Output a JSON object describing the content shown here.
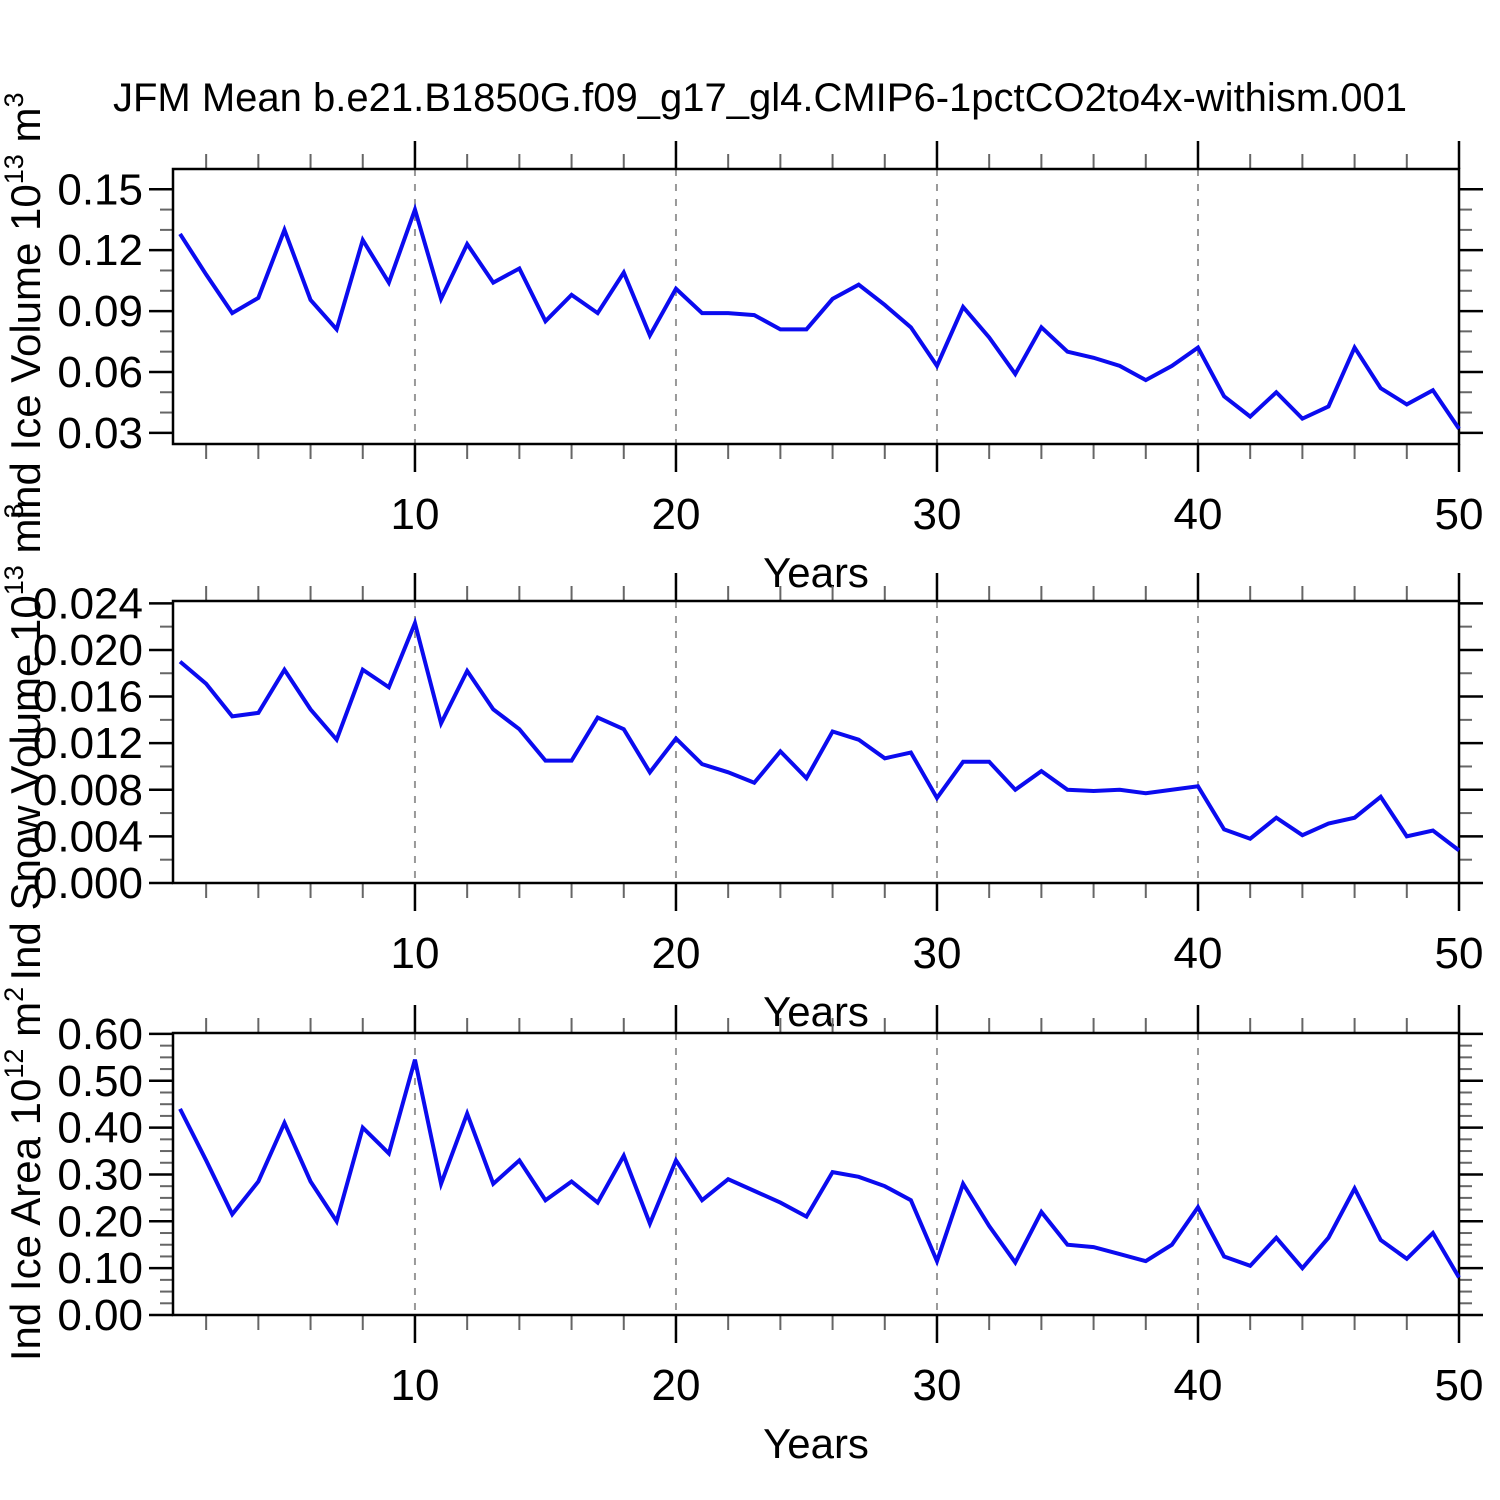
{
  "title": "JFM Mean b.e21.B1850G.f09_g17_gl4.CMIP6-1pctCO2to4x-withism.001",
  "colors": {
    "line": "#0b0bef",
    "grid": "#999999",
    "frame": "#000000",
    "minor_tick": "#666666"
  },
  "chart_data": [
    {
      "type": "line",
      "ylabel": "Ind Ice Volume 10^13 m^3",
      "ylabel_segments": [
        {
          "t": "Ind Ice Volume 10"
        },
        {
          "t": "13",
          "sup": true
        },
        {
          "t": " m"
        },
        {
          "t": "3",
          "sup": true
        }
      ],
      "xlabel": "Years",
      "xlim": [
        0.73,
        50
      ],
      "ylim": [
        0.0245,
        0.16
      ],
      "xticks_major": [
        10,
        20,
        30,
        40,
        50
      ],
      "xticks_minor": [
        2,
        4,
        6,
        8,
        12,
        14,
        16,
        18,
        22,
        24,
        26,
        28,
        32,
        34,
        36,
        38,
        42,
        44,
        46,
        48
      ],
      "gridlines_x": [
        10,
        20,
        30,
        40
      ],
      "yticks_major": [
        0.03,
        0.06,
        0.09,
        0.12,
        0.15
      ],
      "ytick_labels": [
        "0.03",
        "0.06",
        "0.09",
        "0.12",
        "0.15"
      ],
      "yticks_minor": [
        0.04,
        0.05,
        0.07,
        0.08,
        0.1,
        0.11,
        0.13,
        0.14
      ],
      "x": [
        1,
        2,
        3,
        4,
        5,
        6,
        7,
        8,
        9,
        10,
        11,
        12,
        13,
        14,
        15,
        16,
        17,
        18,
        19,
        20,
        21,
        22,
        23,
        24,
        25,
        26,
        27,
        28,
        29,
        30,
        31,
        32,
        33,
        34,
        35,
        36,
        37,
        38,
        39,
        40,
        41,
        42,
        43,
        44,
        45,
        46,
        47,
        48,
        49,
        50
      ],
      "values": [
        0.128,
        0.108,
        0.089,
        0.0965,
        0.13,
        0.0955,
        0.081,
        0.125,
        0.104,
        0.14,
        0.096,
        0.123,
        0.104,
        0.111,
        0.085,
        0.098,
        0.089,
        0.109,
        0.078,
        0.101,
        0.089,
        0.089,
        0.088,
        0.081,
        0.081,
        0.096,
        0.103,
        0.093,
        0.082,
        0.063,
        0.092,
        0.077,
        0.059,
        0.082,
        0.07,
        0.067,
        0.063,
        0.056,
        0.063,
        0.072,
        0.048,
        0.038,
        0.05,
        0.037,
        0.043,
        0.072,
        0.052,
        0.044,
        0.051,
        0.032
      ]
    },
    {
      "type": "line",
      "ylabel": "Ind Snow Volume 10^13 m^3",
      "ylabel_segments": [
        {
          "t": "Ind Snow Volume 10"
        },
        {
          "t": "13",
          "sup": true
        },
        {
          "t": " m"
        },
        {
          "t": "3",
          "sup": true
        }
      ],
      "xlabel": "Years",
      "xlim": [
        0.73,
        50
      ],
      "ylim": [
        0.0,
        0.0242
      ],
      "xticks_major": [
        10,
        20,
        30,
        40,
        50
      ],
      "xticks_minor": [
        2,
        4,
        6,
        8,
        12,
        14,
        16,
        18,
        22,
        24,
        26,
        28,
        32,
        34,
        36,
        38,
        42,
        44,
        46,
        48
      ],
      "gridlines_x": [
        10,
        20,
        30,
        40
      ],
      "yticks_major": [
        0.0,
        0.004,
        0.008,
        0.012,
        0.016,
        0.02,
        0.024
      ],
      "ytick_labels": [
        "0.000",
        "0.004",
        "0.008",
        "0.012",
        "0.016",
        "0.020",
        "0.024"
      ],
      "yticks_minor": [
        0.002,
        0.006,
        0.01,
        0.014,
        0.018,
        0.022
      ],
      "x": [
        1,
        2,
        3,
        4,
        5,
        6,
        7,
        8,
        9,
        10,
        11,
        12,
        13,
        14,
        15,
        16,
        17,
        18,
        19,
        20,
        21,
        22,
        23,
        24,
        25,
        26,
        27,
        28,
        29,
        30,
        31,
        32,
        33,
        34,
        35,
        36,
        37,
        38,
        39,
        40,
        41,
        42,
        43,
        44,
        45,
        46,
        47,
        48,
        49,
        50
      ],
      "values": [
        0.019,
        0.0171,
        0.0143,
        0.0146,
        0.0183,
        0.0149,
        0.0123,
        0.0183,
        0.0168,
        0.0223,
        0.0137,
        0.0182,
        0.0149,
        0.0132,
        0.0105,
        0.0105,
        0.0142,
        0.0132,
        0.0095,
        0.0124,
        0.0102,
        0.0095,
        0.0086,
        0.0113,
        0.009,
        0.013,
        0.0123,
        0.0107,
        0.0112,
        0.0073,
        0.0104,
        0.0104,
        0.008,
        0.0096,
        0.008,
        0.0079,
        0.008,
        0.0077,
        0.008,
        0.0083,
        0.0046,
        0.0038,
        0.0056,
        0.0041,
        0.0051,
        0.0056,
        0.0074,
        0.004,
        0.0045,
        0.0028
      ]
    },
    {
      "type": "line",
      "ylabel": "Ind Ice Area 10^12 m^2",
      "ylabel_segments": [
        {
          "t": "Ind Ice Area 10"
        },
        {
          "t": "12",
          "sup": true
        },
        {
          "t": " m"
        },
        {
          "t": "2",
          "sup": true
        }
      ],
      "xlabel": "Years",
      "xlim": [
        0.73,
        50
      ],
      "ylim": [
        0.0,
        0.602
      ],
      "xticks_major": [
        10,
        20,
        30,
        40,
        50
      ],
      "xticks_minor": [
        2,
        4,
        6,
        8,
        12,
        14,
        16,
        18,
        22,
        24,
        26,
        28,
        32,
        34,
        36,
        38,
        42,
        44,
        46,
        48
      ],
      "gridlines_x": [
        10,
        20,
        30,
        40
      ],
      "yticks_major": [
        0.0,
        0.1,
        0.2,
        0.3,
        0.4,
        0.5,
        0.6
      ],
      "ytick_labels": [
        "0.00",
        "0.10",
        "0.20",
        "0.30",
        "0.40",
        "0.50",
        "0.60"
      ],
      "yticks_minor": [
        0.025,
        0.05,
        0.075,
        0.125,
        0.15,
        0.175,
        0.225,
        0.25,
        0.275,
        0.325,
        0.35,
        0.375,
        0.425,
        0.45,
        0.475,
        0.525,
        0.55,
        0.575
      ],
      "x": [
        1,
        2,
        3,
        4,
        5,
        6,
        7,
        8,
        9,
        10,
        11,
        12,
        13,
        14,
        15,
        16,
        17,
        18,
        19,
        20,
        21,
        22,
        23,
        24,
        25,
        26,
        27,
        28,
        29,
        30,
        31,
        32,
        33,
        34,
        35,
        36,
        37,
        38,
        39,
        40,
        41,
        42,
        43,
        44,
        45,
        46,
        47,
        48,
        49,
        50
      ],
      "values": [
        0.44,
        0.33,
        0.215,
        0.285,
        0.41,
        0.285,
        0.2,
        0.4,
        0.345,
        0.545,
        0.28,
        0.43,
        0.28,
        0.33,
        0.245,
        0.285,
        0.24,
        0.34,
        0.195,
        0.33,
        0.245,
        0.29,
        0.265,
        0.24,
        0.21,
        0.305,
        0.295,
        0.275,
        0.245,
        0.115,
        0.28,
        0.19,
        0.112,
        0.22,
        0.15,
        0.145,
        0.13,
        0.115,
        0.15,
        0.23,
        0.125,
        0.105,
        0.165,
        0.1,
        0.165,
        0.27,
        0.16,
        0.12,
        0.175,
        0.08
      ]
    }
  ]
}
